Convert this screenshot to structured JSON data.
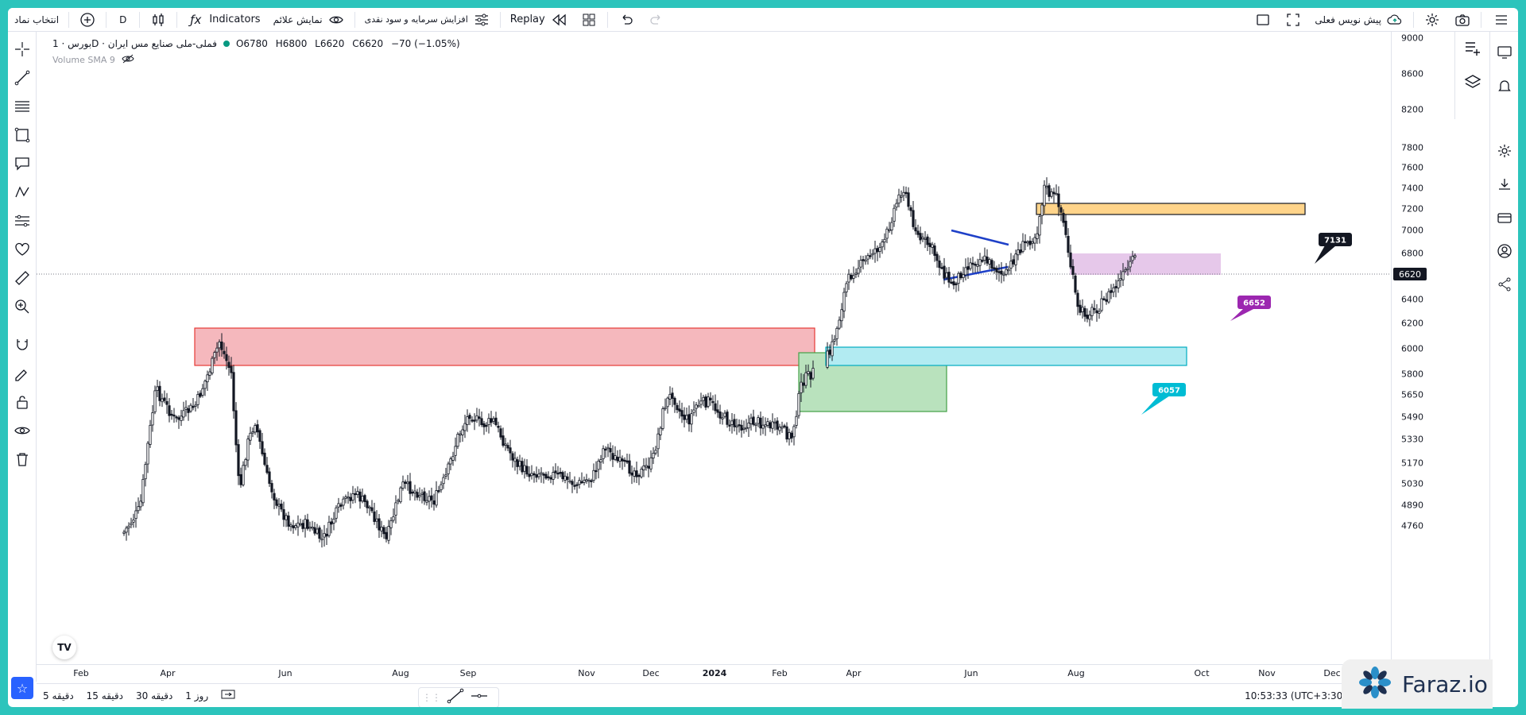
{
  "topbar": {
    "symbol_search": "انتخاب نماد",
    "interval": "D",
    "indicators": "Indicators",
    "show_signals": "نمایش علائم",
    "capital_increase": "افزایش سرمایه و سود نقدی",
    "replay": "Replay",
    "draft_label": "پیش نویس فعلی"
  },
  "legend": {
    "title": "بورس · 1D · فملی-ملی صنایع مس ایران",
    "open": "O6780",
    "high": "H6800",
    "low": "L6620",
    "close": "C6620",
    "change": "−70 (−1.05%)",
    "volume": "Volume SMA 9"
  },
  "colors": {
    "up": "#089981",
    "candle": "#131722",
    "red_zone": "#f5b8bd",
    "green_zone": "#b9e2bd",
    "cyan_zone": "#b2ebf2",
    "orange_zone": "#ffd48a",
    "purple_zone": "#e6c8ea"
  },
  "price_scale": {
    "ticks": [
      "9000",
      "8600",
      "8200",
      "7800",
      "7600",
      "7400",
      "7200",
      "7000",
      "6800",
      "6400",
      "6200",
      "6000",
      "5800",
      "5650",
      "5490",
      "5330",
      "5170",
      "5030",
      "4890",
      "4760"
    ],
    "last_price": "6620"
  },
  "time_axis": {
    "ticks": [
      "Feb",
      "Apr",
      "Jun",
      "Aug",
      "Sep",
      "Nov",
      "Dec",
      "2024",
      "Feb",
      "Apr",
      "Jun",
      "Aug",
      "Oct",
      "Nov",
      "Dec"
    ]
  },
  "zones": {
    "orange_label": "7131",
    "purple_label": "6652",
    "cyan_label": "6057"
  },
  "bottombar": {
    "tf_5m": "5 دقیقه",
    "tf_15m": "15 دقیقه",
    "tf_30m": "30 دقیقه",
    "tf_1d": "1 روز",
    "clock": "10:53:33 (UTC+3:30)"
  },
  "watermark": "Faraz.io",
  "tv_logo": "TV"
}
